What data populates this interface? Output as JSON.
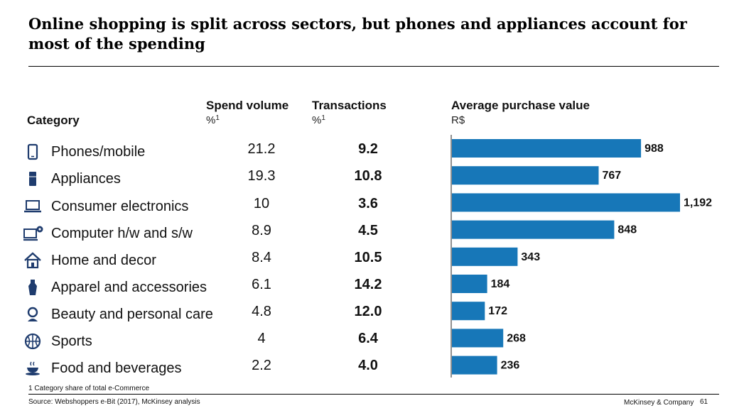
{
  "title": "Online shopping is split across sectors, but phones and appliances account for most of the spending",
  "headers": {
    "category": "Category",
    "spend": "Spend volume",
    "spend_unit": "%",
    "spend_sup": "1",
    "transactions": "Transactions",
    "transactions_unit": "%",
    "transactions_sup": "1",
    "avg": "Average purchase value",
    "avg_unit": "R$"
  },
  "colors": {
    "bar": "#1777b8",
    "text": "#111111"
  },
  "rows": [
    {
      "category": "Phones/mobile",
      "icon": "phone-icon",
      "spend": "21.2",
      "transactions": "9.2",
      "avg_label": "988"
    },
    {
      "category": "Appliances",
      "icon": "appliance-icon",
      "spend": "19.3",
      "transactions": "10.8",
      "avg_label": "767"
    },
    {
      "category": "Consumer electronics",
      "icon": "laptop-icon",
      "spend": "10",
      "transactions": "3.6",
      "avg_label": "1,192"
    },
    {
      "category": "Computer h/w and s/w",
      "icon": "computer-gear-icon",
      "spend": "8.9",
      "transactions": "4.5",
      "avg_label": "848"
    },
    {
      "category": "Home and decor",
      "icon": "house-icon",
      "spend": "8.4",
      "transactions": "10.5",
      "avg_label": "343"
    },
    {
      "category": "Apparel and accessories",
      "icon": "dress-icon",
      "spend": "6.1",
      "transactions": "14.2",
      "avg_label": "184"
    },
    {
      "category": "Beauty and personal care",
      "icon": "beauty-icon",
      "spend": "4.8",
      "transactions": "12.0",
      "avg_label": "172"
    },
    {
      "category": "Sports",
      "icon": "ball-icon",
      "spend": "4",
      "transactions": "6.4",
      "avg_label": "268"
    },
    {
      "category": "Food and beverages",
      "icon": "cup-icon",
      "spend": "2.2",
      "transactions": "4.0",
      "avg_label": "236"
    }
  ],
  "chart_data": {
    "type": "bar",
    "orientation": "horizontal",
    "title": "Average purchase value",
    "ylabel": "R$",
    "categories": [
      "Phones/mobile",
      "Appliances",
      "Consumer electronics",
      "Computer h/w and s/w",
      "Home and decor",
      "Apparel and accessories",
      "Beauty and personal care",
      "Sports",
      "Food and beverages"
    ],
    "values": [
      988,
      767,
      1192,
      848,
      343,
      184,
      172,
      268,
      236
    ],
    "xlim": [
      0,
      1192
    ],
    "grid": false,
    "legend": "none"
  },
  "footnote": "1 Category share of total e-Commerce",
  "source": "Source: Webshoppers e-Bit (2017), McKinsey analysis",
  "company": "McKinsey & Company",
  "page_number": "61"
}
